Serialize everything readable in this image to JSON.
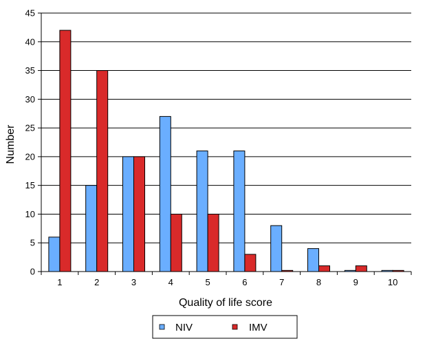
{
  "chart_data": {
    "type": "bar",
    "categories": [
      "1",
      "2",
      "3",
      "4",
      "5",
      "6",
      "7",
      "8",
      "9",
      "10"
    ],
    "series": [
      {
        "name": "NIV",
        "values": [
          6,
          15,
          20,
          27,
          21,
          21,
          8,
          4,
          0.2,
          0.2
        ],
        "color": "#6aaeff"
      },
      {
        "name": "IMV",
        "values": [
          42,
          35,
          20,
          10,
          10,
          3,
          0.2,
          1,
          1,
          0.2
        ],
        "color": "#d92a2a"
      }
    ],
    "xlabel": "Quality of life score",
    "ylabel": "Number",
    "ylim": [
      0,
      45
    ],
    "yticks": [
      0,
      5,
      10,
      15,
      20,
      25,
      30,
      35,
      40,
      45
    ],
    "grid": true,
    "legend": "bottom"
  }
}
